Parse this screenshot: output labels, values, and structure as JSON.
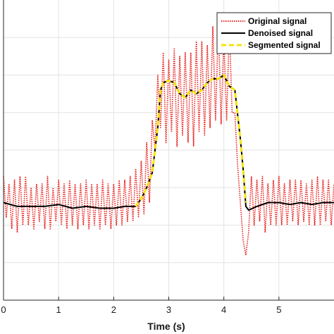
{
  "chart_data": {
    "type": "line",
    "title": "",
    "xlabel": "Time (s)",
    "ylabel": "",
    "xlim": [
      0,
      6
    ],
    "ylim": [
      0,
      8
    ],
    "x_ticks": [
      0,
      1,
      2,
      3,
      4,
      5
    ],
    "grid": true,
    "legend_position": "top-right",
    "series": [
      {
        "name": "Original signal",
        "color": "#e8201c",
        "style": "dotted",
        "x": [
          0.0,
          0.05,
          0.1,
          0.15,
          0.2,
          0.25,
          0.3,
          0.35,
          0.4,
          0.45,
          0.5,
          0.55,
          0.6,
          0.65,
          0.7,
          0.75,
          0.8,
          0.85,
          0.9,
          0.95,
          1.0,
          1.05,
          1.1,
          1.15,
          1.2,
          1.25,
          1.3,
          1.35,
          1.4,
          1.45,
          1.5,
          1.55,
          1.6,
          1.65,
          1.7,
          1.75,
          1.8,
          1.85,
          1.9,
          1.95,
          2.0,
          2.05,
          2.1,
          2.15,
          2.2,
          2.25,
          2.3,
          2.35,
          2.4,
          2.45,
          2.5,
          2.55,
          2.6,
          2.65,
          2.7,
          2.75,
          2.8,
          2.85,
          2.9,
          2.95,
          3.0,
          3.05,
          3.1,
          3.15,
          3.2,
          3.25,
          3.3,
          3.35,
          3.4,
          3.45,
          3.5,
          3.55,
          3.6,
          3.65,
          3.7,
          3.75,
          3.8,
          3.85,
          3.9,
          3.95,
          4.0,
          4.05,
          4.1,
          4.15,
          4.2,
          4.25,
          4.3,
          4.35,
          4.4,
          4.45,
          4.5,
          4.55,
          4.6,
          4.65,
          4.7,
          4.75,
          4.8,
          4.85,
          4.9,
          4.95,
          5.0,
          5.05,
          5.1,
          5.15,
          5.2,
          5.25,
          5.3,
          5.35,
          5.4,
          5.45,
          5.5,
          5.55,
          5.6,
          5.65,
          5.7,
          5.75,
          5.8,
          5.85,
          5.9,
          5.95,
          6.0
        ],
        "values": [
          3.3,
          2.2,
          3.1,
          1.9,
          3.2,
          1.8,
          3.3,
          2.0,
          3.3,
          2.0,
          3.0,
          1.9,
          3.1,
          2.1,
          3.1,
          1.9,
          3.3,
          1.9,
          3.0,
          2.1,
          3.2,
          2.0,
          3.1,
          1.9,
          3.2,
          2.0,
          3.1,
          1.9,
          3.1,
          2.0,
          3.2,
          1.9,
          3.1,
          2.0,
          3.1,
          1.9,
          3.2,
          2.0,
          3.1,
          1.9,
          3.1,
          2.0,
          3.2,
          2.0,
          3.2,
          2.1,
          3.3,
          2.1,
          3.5,
          2.2,
          3.7,
          2.3,
          4.2,
          2.6,
          4.8,
          4.0,
          6.0,
          4.6,
          6.6,
          4.2,
          6.4,
          4.5,
          6.7,
          4.1,
          6.5,
          4.4,
          6.6,
          4.2,
          6.6,
          4.1,
          6.9,
          4.5,
          6.9,
          4.4,
          6.8,
          4.6,
          7.3,
          4.8,
          7.4,
          4.7,
          7.0,
          4.8,
          7.3,
          5.0,
          5.0,
          3.6,
          2.6,
          1.6,
          1.2,
          1.8,
          3.3,
          2.0,
          3.2,
          2.1,
          3.3,
          1.8,
          3.1,
          2.0,
          3.2,
          2.0,
          3.3,
          2.0,
          3.1,
          2.0,
          3.2,
          2.1,
          3.2,
          2.0,
          3.2,
          2.1,
          3.1,
          2.0,
          3.2,
          2.0,
          3.3,
          2.0,
          3.2,
          2.1,
          3.2,
          2.0,
          3.1
        ]
      },
      {
        "name": "Denoised signal",
        "color": "#000000",
        "style": "solid",
        "x": [
          0.0,
          0.25,
          0.5,
          0.75,
          1.0,
          1.25,
          1.5,
          1.75,
          2.0,
          2.2,
          2.4,
          2.5,
          2.6,
          2.7,
          2.8,
          2.85,
          2.9,
          3.0,
          3.1,
          3.2,
          3.3,
          3.4,
          3.5,
          3.6,
          3.7,
          3.8,
          3.9,
          4.0,
          4.1,
          4.2,
          4.3,
          4.35,
          4.4,
          4.45,
          4.6,
          4.8,
          5.0,
          5.2,
          5.4,
          5.6,
          5.8,
          6.0
        ],
        "values": [
          2.6,
          2.5,
          2.5,
          2.5,
          2.55,
          2.45,
          2.5,
          2.45,
          2.45,
          2.5,
          2.5,
          2.7,
          3.0,
          3.4,
          4.6,
          5.6,
          5.8,
          5.85,
          5.8,
          5.5,
          5.4,
          5.6,
          5.5,
          5.6,
          5.8,
          5.9,
          5.9,
          6.0,
          5.7,
          5.6,
          4.3,
          3.5,
          2.5,
          2.4,
          2.5,
          2.6,
          2.6,
          2.55,
          2.6,
          2.55,
          2.6,
          2.6
        ]
      },
      {
        "name": "Segmented signal",
        "color": "#f5e210",
        "style": "dashed",
        "x": [
          2.4,
          2.5,
          2.6,
          2.7,
          2.8,
          2.85,
          2.9,
          3.0,
          3.1,
          3.2,
          3.3,
          3.4,
          3.5,
          3.6,
          3.7,
          3.8,
          3.9,
          4.0,
          4.1,
          4.2,
          4.3,
          4.35,
          4.4
        ],
        "values": [
          2.5,
          2.7,
          3.0,
          3.4,
          4.6,
          5.6,
          5.8,
          5.85,
          5.8,
          5.5,
          5.4,
          5.6,
          5.5,
          5.6,
          5.8,
          5.9,
          5.9,
          6.0,
          5.7,
          5.6,
          4.3,
          3.5,
          2.6
        ]
      }
    ]
  }
}
